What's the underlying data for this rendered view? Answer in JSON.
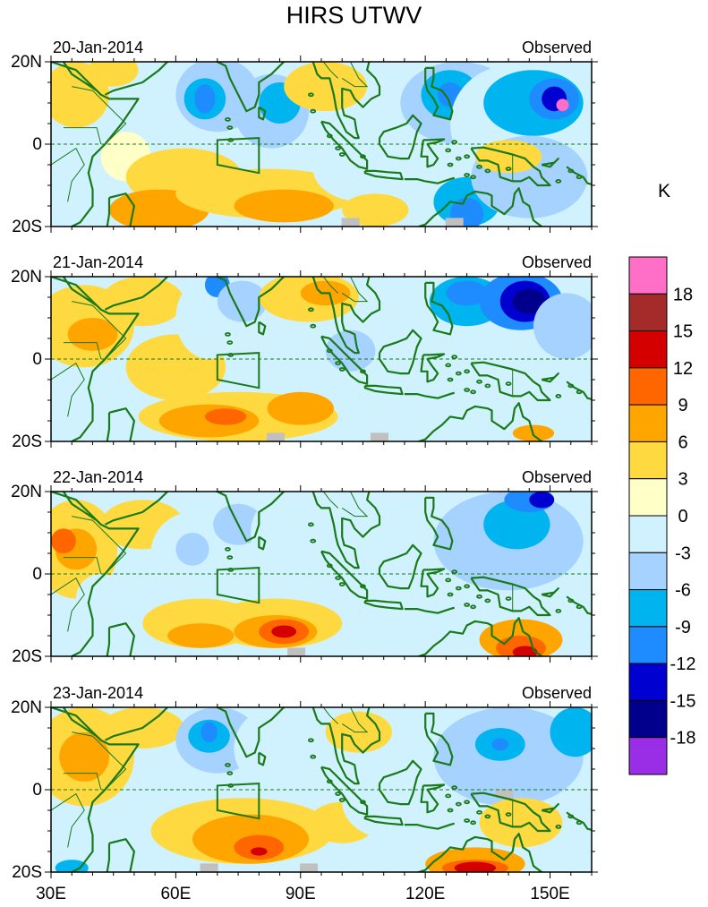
{
  "chart_data": {
    "type": "heatmap",
    "title": "HIRS UTWV",
    "units": "K",
    "colorbar": {
      "levels": [
        "18",
        "15",
        "12",
        "9",
        "6",
        "3",
        "0",
        "-3",
        "-6",
        "-9",
        "-12",
        "-15",
        "-18"
      ],
      "colors": [
        "#ff6ec7",
        "#a52a2a",
        "#d40000",
        "#ff6600",
        "#ffa500",
        "#ffd940",
        "#ffffc8",
        "#d0f2ff",
        "#a6d2ff",
        "#00b4f0",
        "#1e8cff",
        "#0000d0",
        "#00008c",
        "#9a2ee6"
      ]
    },
    "x_ticks": [
      "30E",
      "60E",
      "90E",
      "120E",
      "150E"
    ],
    "x_tick_values": [
      30,
      60,
      90,
      120,
      150
    ],
    "y_ticks": [
      "20N",
      "0",
      "20S"
    ],
    "y_tick_values": [
      20,
      0,
      -20
    ],
    "xlim": [
      30,
      160
    ],
    "ylim": [
      -20,
      20
    ],
    "panels": [
      {
        "date": "20-Jan-2014",
        "label": "Observed",
        "blobs": [
          {
            "lon": 36,
            "lat": 12,
            "rx": 8,
            "ry": 8,
            "level": 3
          },
          {
            "lon": 45,
            "lat": 18,
            "rx": 6,
            "ry": 4,
            "level": 3
          },
          {
            "lon": 38,
            "lat": -10,
            "rx": 6,
            "ry": 8,
            "level": -3
          },
          {
            "lon": 48,
            "lat": -3,
            "rx": 6,
            "ry": 6,
            "level": 0
          },
          {
            "lon": 62,
            "lat": -8,
            "rx": 14,
            "ry": 7,
            "level": 3
          },
          {
            "lon": 56,
            "lat": -16,
            "rx": 12,
            "ry": 5,
            "level": 6
          },
          {
            "lon": 70,
            "lat": 12,
            "rx": 10,
            "ry": 9,
            "level": -6
          },
          {
            "lon": 67,
            "lat": 11,
            "rx": 5,
            "ry": 5,
            "level": -9
          },
          {
            "lon": 67,
            "lat": 11,
            "rx": 2.5,
            "ry": 3.5,
            "level": -12
          },
          {
            "lon": 83,
            "lat": 8,
            "rx": 9,
            "ry": 9,
            "level": -6
          },
          {
            "lon": 85,
            "lat": 10,
            "rx": 5,
            "ry": 5,
            "level": -9
          },
          {
            "lon": 96,
            "lat": 14,
            "rx": 10,
            "ry": 6,
            "level": 3
          },
          {
            "lon": 82,
            "lat": -12,
            "rx": 22,
            "ry": 6,
            "level": 3
          },
          {
            "lon": 86,
            "lat": -15,
            "rx": 12,
            "ry": 4,
            "level": 6
          },
          {
            "lon": 105,
            "lat": -6,
            "rx": 12,
            "ry": 8,
            "level": -3
          },
          {
            "lon": 108,
            "lat": -16,
            "rx": 8,
            "ry": 4,
            "level": 3
          },
          {
            "lon": 112,
            "lat": 4,
            "rx": 10,
            "ry": 10,
            "level": -3
          },
          {
            "lon": 128,
            "lat": 10,
            "rx": 14,
            "ry": 10,
            "level": -6
          },
          {
            "lon": 126,
            "lat": 12,
            "rx": 7,
            "ry": 6,
            "level": -9
          },
          {
            "lon": 126,
            "lat": 12,
            "rx": 3,
            "ry": 3,
            "level": -12
          },
          {
            "lon": 140,
            "lat": 5,
            "rx": 14,
            "ry": 14,
            "level": -3
          },
          {
            "lon": 146,
            "lat": 10,
            "rx": 12,
            "ry": 8,
            "level": -9
          },
          {
            "lon": 151,
            "lat": 11,
            "rx": 6,
            "ry": 5,
            "level": -12
          },
          {
            "lon": 151,
            "lat": 11,
            "rx": 3,
            "ry": 3,
            "level": -15
          },
          {
            "lon": 153,
            "lat": 9.5,
            "rx": 1.5,
            "ry": 1.5,
            "level": 18
          },
          {
            "lon": 130,
            "lat": -14,
            "rx": 8,
            "ry": 6,
            "level": -9
          },
          {
            "lon": 130,
            "lat": -17,
            "rx": 4,
            "ry": 4,
            "level": -12
          },
          {
            "lon": 145,
            "lat": -8,
            "rx": 14,
            "ry": 10,
            "level": -6
          },
          {
            "lon": 140,
            "lat": -3,
            "rx": 8,
            "ry": 4,
            "level": 3
          }
        ],
        "missing": [
          {
            "lon": 102,
            "lat": -19
          },
          {
            "lon": 127,
            "lat": -19
          }
        ]
      },
      {
        "date": "21-Jan-2014",
        "label": "Observed",
        "blobs": [
          {
            "lon": 38,
            "lat": 8,
            "rx": 12,
            "ry": 10,
            "level": 3
          },
          {
            "lon": 40,
            "lat": 6,
            "rx": 6,
            "ry": 4,
            "level": 6
          },
          {
            "lon": 52,
            "lat": 14,
            "rx": 10,
            "ry": 6,
            "level": 3
          },
          {
            "lon": 36,
            "lat": -10,
            "rx": 8,
            "ry": 8,
            "level": -3
          },
          {
            "lon": 60,
            "lat": -2,
            "rx": 12,
            "ry": 8,
            "level": 3
          },
          {
            "lon": 68,
            "lat": 10,
            "rx": 8,
            "ry": 10,
            "level": -3
          },
          {
            "lon": 70,
            "lat": 18,
            "rx": 3,
            "ry": 3,
            "level": -12
          },
          {
            "lon": 76,
            "lat": 14,
            "rx": 6,
            "ry": 5,
            "level": -6
          },
          {
            "lon": 92,
            "lat": 15,
            "rx": 12,
            "ry": 6,
            "level": 3
          },
          {
            "lon": 96,
            "lat": 16,
            "rx": 6,
            "ry": 3,
            "level": 6
          },
          {
            "lon": 75,
            "lat": -14,
            "rx": 24,
            "ry": 6,
            "level": 3
          },
          {
            "lon": 68,
            "lat": -15,
            "rx": 12,
            "ry": 4,
            "level": 6
          },
          {
            "lon": 72,
            "lat": -14,
            "rx": 5,
            "ry": 2,
            "level": 9
          },
          {
            "lon": 90,
            "lat": -12,
            "rx": 8,
            "ry": 4,
            "level": 6
          },
          {
            "lon": 108,
            "lat": -4,
            "rx": 14,
            "ry": 9,
            "level": -3
          },
          {
            "lon": 102,
            "lat": 2,
            "rx": 6,
            "ry": 5,
            "level": -6
          },
          {
            "lon": 132,
            "lat": 8,
            "rx": 18,
            "ry": 12,
            "level": -3
          },
          {
            "lon": 130,
            "lat": 14,
            "rx": 9,
            "ry": 6,
            "level": -9
          },
          {
            "lon": 130,
            "lat": 16,
            "rx": 5,
            "ry": 3,
            "level": -12
          },
          {
            "lon": 143,
            "lat": 14,
            "rx": 10,
            "ry": 7,
            "level": -12
          },
          {
            "lon": 144,
            "lat": 14,
            "rx": 6,
            "ry": 5,
            "level": -15
          },
          {
            "lon": 145,
            "lat": 14,
            "rx": 4,
            "ry": 3,
            "level": -18
          },
          {
            "lon": 154,
            "lat": 8,
            "rx": 8,
            "ry": 8,
            "level": -6
          },
          {
            "lon": 146,
            "lat": -10,
            "rx": 14,
            "ry": 8,
            "level": -3
          },
          {
            "lon": 146,
            "lat": -18,
            "rx": 5,
            "ry": 2,
            "level": 6
          }
        ],
        "missing": [
          {
            "lon": 84,
            "lat": -19
          },
          {
            "lon": 109,
            "lat": -19
          }
        ]
      },
      {
        "date": "22-Jan-2014",
        "label": "Observed",
        "blobs": [
          {
            "lon": 36,
            "lat": 6,
            "rx": 10,
            "ry": 12,
            "level": 3
          },
          {
            "lon": 36,
            "lat": 6,
            "rx": 5,
            "ry": 5,
            "level": 6
          },
          {
            "lon": 33,
            "lat": 8,
            "rx": 3,
            "ry": 3,
            "level": 9
          },
          {
            "lon": 52,
            "lat": 12,
            "rx": 10,
            "ry": 6,
            "level": 3
          },
          {
            "lon": 42,
            "lat": -6,
            "rx": 6,
            "ry": 6,
            "level": -3
          },
          {
            "lon": 64,
            "lat": 5,
            "rx": 10,
            "ry": 10,
            "level": -3
          },
          {
            "lon": 64,
            "lat": 6,
            "rx": 4,
            "ry": 4,
            "level": -6
          },
          {
            "lon": 75,
            "lat": 12,
            "rx": 6,
            "ry": 5,
            "level": -6
          },
          {
            "lon": 88,
            "lat": 10,
            "rx": 10,
            "ry": 10,
            "level": -3
          },
          {
            "lon": 66,
            "lat": -12,
            "rx": 14,
            "ry": 6,
            "level": 3
          },
          {
            "lon": 84,
            "lat": -12,
            "rx": 16,
            "ry": 6,
            "level": 3
          },
          {
            "lon": 84,
            "lat": -14,
            "rx": 10,
            "ry": 4,
            "level": 6
          },
          {
            "lon": 86,
            "lat": -14,
            "rx": 6,
            "ry": 3,
            "level": 9
          },
          {
            "lon": 86,
            "lat": -14,
            "rx": 3,
            "ry": 1.5,
            "level": 12
          },
          {
            "lon": 66,
            "lat": -15,
            "rx": 8,
            "ry": 3,
            "level": 6
          },
          {
            "lon": 110,
            "lat": -4,
            "rx": 14,
            "ry": 9,
            "level": -3
          },
          {
            "lon": 126,
            "lat": 6,
            "rx": 12,
            "ry": 10,
            "level": -3
          },
          {
            "lon": 140,
            "lat": 8,
            "rx": 18,
            "ry": 12,
            "level": -6
          },
          {
            "lon": 142,
            "lat": 12,
            "rx": 8,
            "ry": 6,
            "level": -9
          },
          {
            "lon": 145,
            "lat": 18,
            "rx": 6,
            "ry": 3,
            "level": -12
          },
          {
            "lon": 148,
            "lat": 18,
            "rx": 3,
            "ry": 2,
            "level": -15
          },
          {
            "lon": 143,
            "lat": -16,
            "rx": 10,
            "ry": 5,
            "level": 6
          },
          {
            "lon": 143,
            "lat": -18,
            "rx": 6,
            "ry": 3,
            "level": 9
          },
          {
            "lon": 144,
            "lat": -19,
            "rx": 3,
            "ry": 1.5,
            "level": 12
          }
        ],
        "missing": [
          {
            "lon": 89,
            "lat": -19
          }
        ]
      },
      {
        "date": "23-Jan-2014",
        "label": "Observed",
        "blobs": [
          {
            "lon": 38,
            "lat": 8,
            "rx": 12,
            "ry": 12,
            "level": 3
          },
          {
            "lon": 38,
            "lat": 8,
            "rx": 6,
            "ry": 6,
            "level": 6
          },
          {
            "lon": 52,
            "lat": 15,
            "rx": 10,
            "ry": 5,
            "level": 3
          },
          {
            "lon": 40,
            "lat": -10,
            "rx": 8,
            "ry": 6,
            "level": -3
          },
          {
            "lon": 35,
            "lat": -19,
            "rx": 4,
            "ry": 2,
            "level": -9
          },
          {
            "lon": 70,
            "lat": 12,
            "rx": 10,
            "ry": 8,
            "level": -6
          },
          {
            "lon": 68,
            "lat": 13,
            "rx": 5,
            "ry": 4,
            "level": -9
          },
          {
            "lon": 68,
            "lat": 14,
            "rx": 2,
            "ry": 2.5,
            "level": -12
          },
          {
            "lon": 84,
            "lat": 10,
            "rx": 10,
            "ry": 10,
            "level": -3
          },
          {
            "lon": 76,
            "lat": -10,
            "rx": 22,
            "ry": 8,
            "level": 3
          },
          {
            "lon": 78,
            "lat": -12,
            "rx": 14,
            "ry": 6,
            "level": 6
          },
          {
            "lon": 80,
            "lat": -14,
            "rx": 6,
            "ry": 3,
            "level": 9
          },
          {
            "lon": 80,
            "lat": -15,
            "rx": 2,
            "ry": 1,
            "level": 12
          },
          {
            "lon": 100,
            "lat": -8,
            "rx": 8,
            "ry": 5,
            "level": 3
          },
          {
            "lon": 112,
            "lat": -3,
            "rx": 12,
            "ry": 9,
            "level": -3
          },
          {
            "lon": 104,
            "lat": 14,
            "rx": 8,
            "ry": 5,
            "level": 3
          },
          {
            "lon": 140,
            "lat": 8,
            "rx": 18,
            "ry": 12,
            "level": -6
          },
          {
            "lon": 138,
            "lat": 11,
            "rx": 6,
            "ry": 4,
            "level": -9
          },
          {
            "lon": 138,
            "lat": 11,
            "rx": 2,
            "ry": 1.5,
            "level": -12
          },
          {
            "lon": 156,
            "lat": 14,
            "rx": 6,
            "ry": 6,
            "level": -9
          },
          {
            "lon": 143,
            "lat": -8,
            "rx": 10,
            "ry": 6,
            "level": 3
          },
          {
            "lon": 132,
            "lat": -18,
            "rx": 12,
            "ry": 4,
            "level": 6
          },
          {
            "lon": 132,
            "lat": -19,
            "rx": 8,
            "ry": 2,
            "level": 9
          },
          {
            "lon": 132,
            "lat": -19,
            "rx": 5,
            "ry": 1.5,
            "level": 12
          }
        ],
        "missing": [
          {
            "lon": 68,
            "lat": -19
          },
          {
            "lon": 92,
            "lat": -19
          },
          {
            "lon": 139,
            "lat": -1
          }
        ]
      }
    ]
  }
}
